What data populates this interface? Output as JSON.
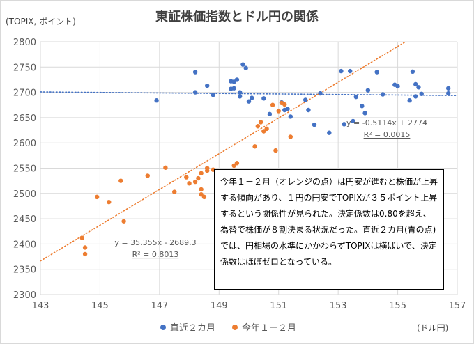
{
  "title": "東証株価指数とドル円の関係",
  "y_unit_label": "(TOPIX, ポイント)",
  "x_unit_label": "(ドル円)",
  "annotation_text": "今年１－２月（オレンジの点）は円安が進むと株価が上昇する傾向があり、１円の円安でTOPIXが３５ポイント上昇するという関係性が見られた。決定係数は0.80を超え、為替で株価が８割決まる状況だった。直近２カ月(青の点)では、円相場の水準にかかわらずTOPIXは横ばいで、決定係数はほぼゼロとなっている。",
  "colors": {
    "blue": "#4472c4",
    "orange": "#ed7d31",
    "grid": "#d9d9d9",
    "text": "#595959"
  },
  "chart_data": {
    "type": "scatter",
    "title": "東証株価指数とドル円の関係",
    "xlabel": "(ドル円)",
    "ylabel": "(TOPIX, ポイント)",
    "xlim": [
      143,
      157
    ],
    "ylim": [
      2300,
      2800
    ],
    "x_ticks": [
      143,
      145,
      147,
      149,
      151,
      153,
      155,
      157
    ],
    "y_ticks": [
      2300,
      2350,
      2400,
      2450,
      2500,
      2550,
      2600,
      2650,
      2700,
      2750,
      2800
    ],
    "grid": true,
    "legend_position": "bottom",
    "series": [
      {
        "name": "直近２カ月",
        "color": "#4472c4",
        "trendline": {
          "equation": "y = -0.5114x + 2774",
          "r2_label": "R² = 0.0015",
          "slope": -0.5114,
          "intercept": 2774
        },
        "points": [
          [
            146.9,
            2684
          ],
          [
            148.2,
            2740
          ],
          [
            148.2,
            2700
          ],
          [
            148.6,
            2713
          ],
          [
            148.8,
            2695
          ],
          [
            149.4,
            2722
          ],
          [
            149.4,
            2707
          ],
          [
            149.5,
            2708
          ],
          [
            149.5,
            2721
          ],
          [
            149.6,
            2725
          ],
          [
            149.7,
            2692
          ],
          [
            149.7,
            2700
          ],
          [
            149.8,
            2755
          ],
          [
            149.9,
            2748
          ],
          [
            150.0,
            2682
          ],
          [
            150.1,
            2689
          ],
          [
            150.5,
            2688
          ],
          [
            150.7,
            2657
          ],
          [
            151.1,
            2680
          ],
          [
            151.2,
            2665
          ],
          [
            151.3,
            2667
          ],
          [
            151.4,
            2652
          ],
          [
            151.9,
            2685
          ],
          [
            152.0,
            2665
          ],
          [
            152.2,
            2636
          ],
          [
            152.4,
            2698
          ],
          [
            152.7,
            2620
          ],
          [
            153.1,
            2742
          ],
          [
            153.2,
            2637
          ],
          [
            153.4,
            2742
          ],
          [
            153.5,
            2643
          ],
          [
            153.6,
            2691
          ],
          [
            153.8,
            2673
          ],
          [
            153.9,
            2659
          ],
          [
            154.0,
            2704
          ],
          [
            154.3,
            2740
          ],
          [
            154.5,
            2696
          ],
          [
            154.9,
            2715
          ],
          [
            155.0,
            2712
          ],
          [
            155.4,
            2684
          ],
          [
            155.5,
            2741
          ],
          [
            155.6,
            2716
          ],
          [
            155.6,
            2692
          ],
          [
            155.7,
            2710
          ],
          [
            155.8,
            2697
          ],
          [
            156.7,
            2708
          ],
          [
            156.7,
            2698
          ],
          [
            157.2,
            2702
          ]
        ]
      },
      {
        "name": "今年１－２月",
        "color": "#ed7d31",
        "trendline": {
          "equation": "y = 35.355x - 2689.3",
          "r2_label": "R² = 0.8013",
          "slope": 35.355,
          "intercept": -2689.3
        },
        "points": [
          [
            144.4,
            2412
          ],
          [
            144.5,
            2393
          ],
          [
            144.5,
            2380
          ],
          [
            144.9,
            2493
          ],
          [
            145.3,
            2483
          ],
          [
            145.7,
            2525
          ],
          [
            145.8,
            2445
          ],
          [
            146.6,
            2535
          ],
          [
            147.2,
            2551
          ],
          [
            147.5,
            2503
          ],
          [
            147.9,
            2532
          ],
          [
            148.0,
            2520
          ],
          [
            148.2,
            2523
          ],
          [
            148.3,
            2530
          ],
          [
            148.4,
            2540
          ],
          [
            148.4,
            2508
          ],
          [
            148.4,
            2498
          ],
          [
            148.5,
            2493
          ],
          [
            148.6,
            2550
          ],
          [
            148.6,
            2545
          ],
          [
            148.8,
            2547
          ],
          [
            149.0,
            2530
          ],
          [
            149.2,
            2542
          ],
          [
            149.5,
            2555
          ],
          [
            149.6,
            2560
          ],
          [
            150.2,
            2593
          ],
          [
            150.3,
            2633
          ],
          [
            150.4,
            2641
          ],
          [
            150.5,
            2623
          ],
          [
            150.6,
            2628
          ],
          [
            150.8,
            2675
          ],
          [
            150.9,
            2585
          ],
          [
            151.0,
            2663
          ],
          [
            151.1,
            2679
          ],
          [
            151.2,
            2676
          ],
          [
            151.4,
            2612
          ]
        ]
      }
    ]
  }
}
